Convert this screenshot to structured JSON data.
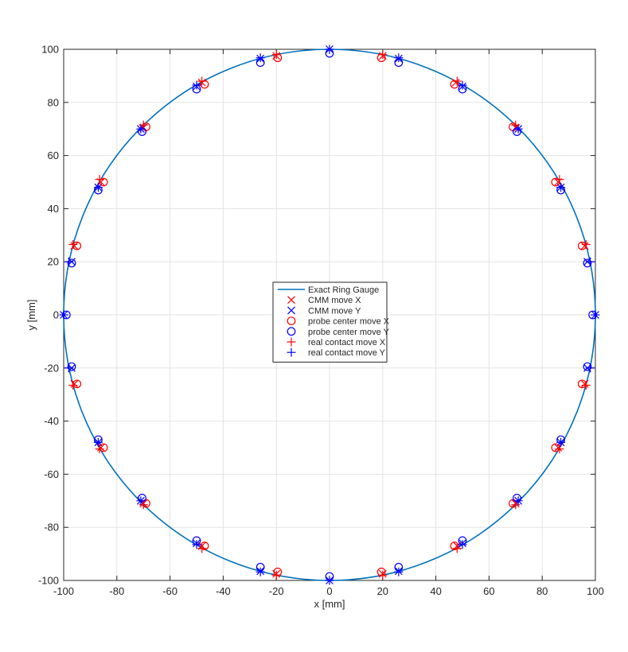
{
  "chart_data": {
    "type": "scatter",
    "title": "",
    "xlabel": "x [mm]",
    "ylabel": "y [mm]",
    "xlim": [
      -100,
      100
    ],
    "ylim": [
      -100,
      100
    ],
    "xticks": [
      -100,
      -80,
      -60,
      -40,
      -20,
      0,
      20,
      40,
      60,
      80,
      100
    ],
    "yticks": [
      -100,
      -80,
      -60,
      -40,
      -20,
      0,
      20,
      40,
      60,
      80,
      100
    ],
    "grid": true,
    "legend_position": "center",
    "circle": {
      "name": "Exact Ring Gauge",
      "center": [
        0,
        0
      ],
      "radius": 100,
      "color": "#0072BD"
    },
    "series": [
      {
        "name": "CMM move X",
        "marker": "x",
        "color": "#ff0000",
        "points": [
          [
            20,
            97.5
          ],
          [
            47.5,
            87.5
          ],
          [
            70,
            70.5
          ],
          [
            86,
            50
          ],
          [
            96,
            26
          ],
          [
            -96,
            -26
          ],
          [
            -86,
            -50
          ],
          [
            -70,
            -71
          ],
          [
            -48,
            -87
          ],
          [
            -20,
            -97.5
          ],
          [
            -20,
            97.5
          ],
          [
            -48,
            87.5
          ],
          [
            -70,
            70.5
          ],
          [
            -86,
            50
          ],
          [
            -96,
            26
          ],
          [
            96,
            -26
          ],
          [
            86,
            -50
          ],
          [
            70,
            -71
          ],
          [
            48,
            -87
          ],
          [
            20,
            -97.5
          ]
        ]
      },
      {
        "name": "CMM move Y",
        "marker": "x",
        "color": "#0000ff",
        "points": [
          [
            0,
            100
          ],
          [
            26,
            96.5
          ],
          [
            50,
            86
          ],
          [
            71,
            70
          ],
          [
            87,
            48
          ],
          [
            97,
            20
          ],
          [
            100,
            0
          ],
          [
            97,
            -20
          ],
          [
            87,
            -48
          ],
          [
            71,
            -70
          ],
          [
            50,
            -86
          ],
          [
            26,
            -96.5
          ],
          [
            0,
            -100
          ],
          [
            -26,
            -96.5
          ],
          [
            -50,
            -86
          ],
          [
            -71,
            -70
          ],
          [
            -87,
            -48
          ],
          [
            -97,
            -20
          ],
          [
            -100,
            0
          ],
          [
            -97,
            20
          ],
          [
            -87,
            48
          ],
          [
            -71,
            70
          ],
          [
            -50,
            86
          ],
          [
            -26,
            96.5
          ]
        ]
      },
      {
        "name": "probe center move X",
        "marker": "o",
        "color": "#ff0000",
        "points": [
          [
            19.5,
            96.8
          ],
          [
            47,
            86.8
          ],
          [
            69,
            70.8
          ],
          [
            85,
            50
          ],
          [
            95,
            26
          ],
          [
            -95,
            -26
          ],
          [
            -85,
            -50
          ],
          [
            -69,
            -71
          ],
          [
            -47,
            -87
          ],
          [
            -19.5,
            -96.8
          ],
          [
            -19.5,
            96.8
          ],
          [
            -47,
            86.8
          ],
          [
            -69,
            70.8
          ],
          [
            -85,
            50
          ],
          [
            -95,
            26
          ],
          [
            95,
            -26
          ],
          [
            85,
            -50
          ],
          [
            69,
            -71
          ],
          [
            47,
            -87
          ],
          [
            19.5,
            -96.8
          ]
        ]
      },
      {
        "name": "probe center move Y",
        "marker": "o",
        "color": "#0000ff",
        "points": [
          [
            0,
            98.5
          ],
          [
            26,
            95
          ],
          [
            50,
            85
          ],
          [
            70.5,
            69
          ],
          [
            87,
            47
          ],
          [
            97,
            19.5
          ],
          [
            99,
            0
          ],
          [
            97,
            -19.5
          ],
          [
            87,
            -47
          ],
          [
            70.5,
            -69
          ],
          [
            50,
            -85
          ],
          [
            26,
            -95
          ],
          [
            0,
            -98.5
          ],
          [
            -26,
            -95
          ],
          [
            -50,
            -85
          ],
          [
            -70.5,
            -69
          ],
          [
            -87,
            -47
          ],
          [
            -97,
            -19.5
          ],
          [
            -99,
            0
          ],
          [
            -97,
            19.5
          ],
          [
            -87,
            47
          ],
          [
            -70.5,
            69
          ],
          [
            -50,
            85
          ],
          [
            -26,
            95
          ]
        ]
      },
      {
        "name": "real contact move X",
        "marker": "+",
        "color": "#ff0000",
        "points": [
          [
            20,
            98
          ],
          [
            48,
            88
          ],
          [
            70,
            71.5
          ],
          [
            86.5,
            51
          ],
          [
            96.5,
            26.5
          ],
          [
            -96.5,
            -26.5
          ],
          [
            -86.5,
            -50.5
          ],
          [
            -70,
            -71.5
          ],
          [
            -48,
            -88
          ],
          [
            -20,
            -98
          ],
          [
            -20,
            98
          ],
          [
            -48,
            88
          ],
          [
            -70,
            71.5
          ],
          [
            -86.5,
            51
          ],
          [
            -96.5,
            26.5
          ],
          [
            96.5,
            -26.5
          ],
          [
            86.5,
            -50.5
          ],
          [
            70,
            -71.5
          ],
          [
            48,
            -88
          ],
          [
            20,
            -98
          ]
        ]
      },
      {
        "name": "real contact move Y",
        "marker": "+",
        "color": "#0000ff",
        "points": [
          [
            0,
            100
          ],
          [
            26,
            96.8
          ],
          [
            50,
            86.5
          ],
          [
            71,
            70
          ],
          [
            87,
            48
          ],
          [
            98,
            20
          ],
          [
            100,
            0
          ],
          [
            98,
            -20
          ],
          [
            87,
            -48
          ],
          [
            71,
            -70
          ],
          [
            50,
            -86.5
          ],
          [
            26,
            -96.8
          ],
          [
            0,
            -100
          ],
          [
            -26,
            -96.8
          ],
          [
            -50,
            -86.5
          ],
          [
            -71,
            -70
          ],
          [
            -87,
            -48
          ],
          [
            -98,
            -20
          ],
          [
            -100,
            0
          ],
          [
            -98,
            20
          ],
          [
            -87,
            48
          ],
          [
            -71,
            70
          ],
          [
            -50,
            86.5
          ],
          [
            -26,
            96.8
          ]
        ]
      }
    ]
  }
}
